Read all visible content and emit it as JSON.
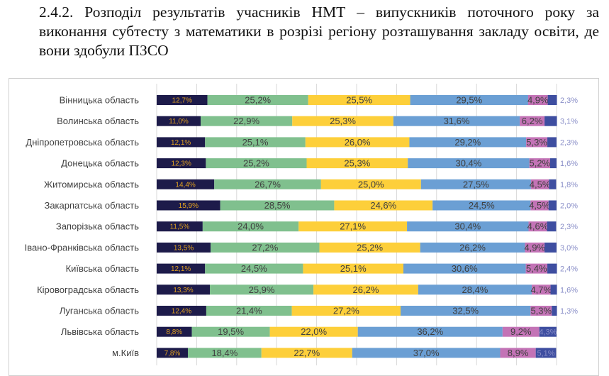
{
  "document": {
    "heading": "2.4.2. Розподіл результатів учасників НМТ – випускників поточного року за виконання субтесту з математики в розрізі регіону розташування закладу освіти, де вони здобули ПЗСО"
  },
  "chart_data": {
    "type": "bar",
    "orientation": "horizontal",
    "stacked": true,
    "percent_stacked": true,
    "xlim": [
      0,
      100
    ],
    "grid": true,
    "categories": [
      "Вінницька область",
      "Волинська область",
      "Дніпропетровська область",
      "Донецька область",
      "Житомирська область",
      "Закарпатська область",
      "Запорізька область",
      "Івано-Франківська область",
      "Київська область",
      "Кіровоградська область",
      "Луганська область",
      "Львівська область",
      "м.Київ"
    ],
    "series": [
      {
        "color": "#1d1b4a",
        "values": [
          12.7,
          11.0,
          12.1,
          12.3,
          14.4,
          15.9,
          11.5,
          13.5,
          12.1,
          13.3,
          12.4,
          8.8,
          7.8
        ]
      },
      {
        "color": "#80c08e",
        "values": [
          25.2,
          22.9,
          25.1,
          25.2,
          26.7,
          28.5,
          24.0,
          27.2,
          24.5,
          25.9,
          21.4,
          19.5,
          18.4
        ]
      },
      {
        "color": "#fdcf3a",
        "values": [
          25.5,
          25.3,
          26.0,
          25.3,
          25.0,
          24.6,
          27.1,
          25.2,
          25.1,
          26.2,
          27.2,
          22.0,
          22.7
        ]
      },
      {
        "color": "#6b9fd4",
        "values": [
          29.5,
          31.6,
          29.2,
          30.4,
          27.5,
          24.5,
          30.4,
          26.2,
          30.6,
          28.4,
          32.5,
          36.2,
          37.0
        ]
      },
      {
        "color": "#c373b6",
        "values": [
          4.9,
          6.2,
          5.3,
          5.2,
          4.5,
          4.5,
          4.6,
          4.9,
          5.4,
          4.7,
          5.3,
          9.2,
          8.9
        ]
      },
      {
        "color": "#3e4ea0",
        "values": [
          2.3,
          3.1,
          2.3,
          1.6,
          1.8,
          2.0,
          2.3,
          3.0,
          2.4,
          1.6,
          1.3,
          4.3,
          5.1
        ]
      }
    ]
  }
}
